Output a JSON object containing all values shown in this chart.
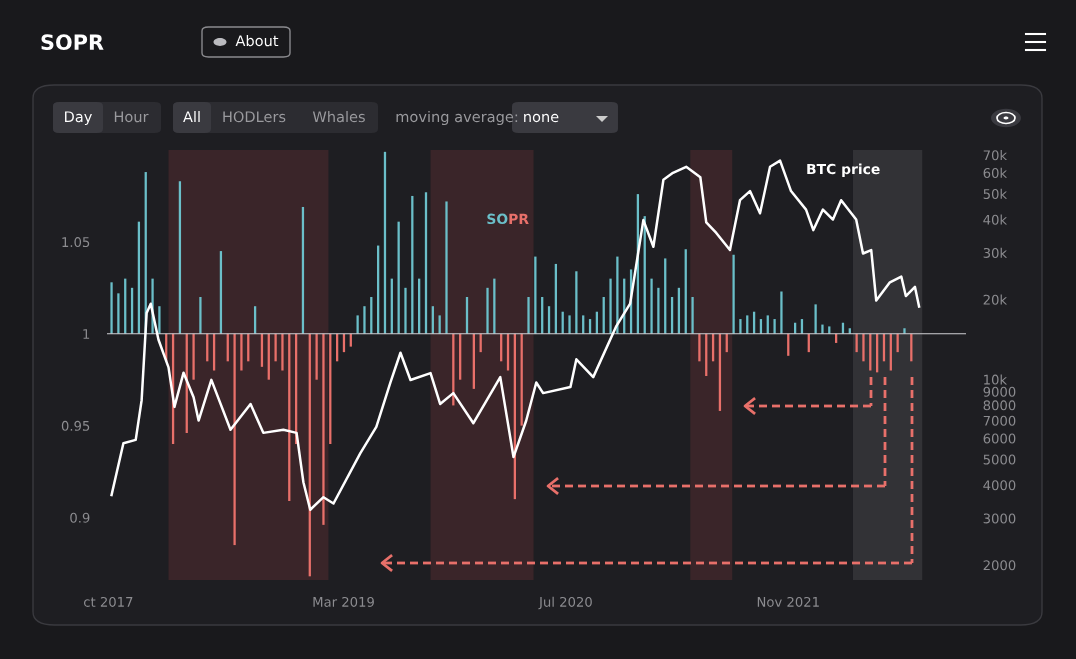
{
  "chart_data": {
    "type": "bar",
    "title": "SOPR",
    "annotations": [
      "About",
      "Day",
      "Hour",
      "All",
      "HODLers",
      "Whales",
      "moving average:",
      "none"
    ],
    "xlim": [
      "2017-09-28",
      "2022-11-26"
    ],
    "xticks": [
      {
        "value": "2017-10-01",
        "label": "ct 2017"
      },
      {
        "value": "2019-03-01",
        "label": "Mar 2019"
      },
      {
        "value": "2020-07-01",
        "label": "Jul 2020"
      },
      {
        "value": "2021-11-01",
        "label": "Nov 2021"
      }
    ],
    "ylim": [
      0.866,
      1.1
    ],
    "yticks": [
      0.9,
      0.95,
      1,
      1.05
    ],
    "y2lim": [
      1756,
      73100
    ],
    "y2ticks": [
      2000,
      3000,
      4000,
      5000,
      6000,
      7000,
      8000,
      9000,
      {
        "value": 10000,
        "label": "10k"
      },
      {
        "value": 20000,
        "label": "20k"
      },
      {
        "value": 30000,
        "label": "30k"
      },
      {
        "value": 40000,
        "label": "40k"
      },
      {
        "value": 50000,
        "label": "50k"
      },
      {
        "value": 60000,
        "label": "60k"
      },
      {
        "value": 70000,
        "label": "70k"
      }
    ],
    "log": "y2",
    "grid": false,
    "legend": false,
    "ref_lines": [
      {
        "axis": "y",
        "value": 1,
        "color": "#d0d0d4"
      }
    ],
    "bands": [
      {
        "axis": "x",
        "from": "2018-02-10",
        "to": "2019-01-27",
        "color": "#3a2529"
      },
      {
        "axis": "x",
        "from": "2019-09-08",
        "to": "2020-04-21",
        "color": "#3a2529"
      },
      {
        "axis": "x",
        "from": "2021-03-31",
        "to": "2021-07-01",
        "color": "#3a2529"
      },
      {
        "axis": "x",
        "from": "2022-03-23",
        "to": "2022-08-22",
        "color": "#323236"
      }
    ],
    "series": [
      {
        "name": "SOPR",
        "x": [
          "2017-10-08",
          "2017-10-23",
          "2017-11-07",
          "2017-11-22",
          "2017-12-07",
          "2017-12-22",
          "2018-01-06",
          "2018-01-21",
          "2018-02-05",
          "2018-02-20",
          "2018-03-07",
          "2018-03-22",
          "2018-04-06",
          "2018-04-21",
          "2018-05-06",
          "2018-05-21",
          "2018-06-05",
          "2018-06-20",
          "2018-07-05",
          "2018-07-20",
          "2018-08-04",
          "2018-08-19",
          "2018-09-03",
          "2018-09-18",
          "2018-10-03",
          "2018-10-18",
          "2018-11-02",
          "2018-11-17",
          "2018-12-02",
          "2018-12-17",
          "2019-01-01",
          "2019-01-16",
          "2019-01-31",
          "2019-02-15",
          "2019-03-02",
          "2019-03-17",
          "2019-04-01",
          "2019-04-16",
          "2019-05-01",
          "2019-05-16",
          "2019-05-31",
          "2019-06-15",
          "2019-06-30",
          "2019-07-15",
          "2019-07-30",
          "2019-08-14",
          "2019-08-29",
          "2019-09-13",
          "2019-09-28",
          "2019-10-13",
          "2019-10-28",
          "2019-11-12",
          "2019-11-27",
          "2019-12-12",
          "2019-12-27",
          "2020-01-11",
          "2020-01-26",
          "2020-02-10",
          "2020-02-25",
          "2020-03-11",
          "2020-03-26",
          "2020-04-10",
          "2020-04-25",
          "2020-05-10",
          "2020-05-25",
          "2020-06-09",
          "2020-06-24",
          "2020-07-09",
          "2020-07-24",
          "2020-08-08",
          "2020-08-23",
          "2020-09-07",
          "2020-09-22",
          "2020-10-07",
          "2020-10-22",
          "2020-11-06",
          "2020-11-21",
          "2020-12-06",
          "2020-12-21",
          "2021-01-05",
          "2021-01-20",
          "2021-02-04",
          "2021-02-19",
          "2021-03-06",
          "2021-03-21",
          "2021-04-05",
          "2021-04-20",
          "2021-05-05",
          "2021-05-20",
          "2021-06-04",
          "2021-06-19",
          "2021-07-04",
          "2021-07-19",
          "2021-08-03",
          "2021-08-18",
          "2021-09-02",
          "2021-09-17",
          "2021-10-02",
          "2021-10-17",
          "2021-11-01",
          "2021-11-16",
          "2021-12-01",
          "2021-12-16",
          "2021-12-31",
          "2022-01-15",
          "2022-01-30",
          "2022-02-14",
          "2022-03-01",
          "2022-03-16",
          "2022-03-31",
          "2022-04-15",
          "2022-04-30",
          "2022-05-15",
          "2022-05-30",
          "2022-06-14",
          "2022-06-29",
          "2022-07-14",
          "2022-07-29"
        ],
        "base": [
          1,
          1,
          1,
          1,
          1,
          1,
          1,
          1,
          1,
          1,
          1,
          1,
          1,
          1,
          1,
          1,
          1,
          1,
          1,
          1,
          1,
          1,
          1,
          1,
          1,
          1,
          1,
          1,
          1,
          1,
          1,
          1,
          1,
          1,
          1,
          1,
          1,
          1,
          1,
          1,
          1,
          1,
          1,
          1,
          1,
          1,
          1,
          1,
          1,
          1,
          1,
          1,
          1,
          1,
          1,
          1,
          1,
          1,
          1,
          1,
          1,
          1,
          1,
          1,
          1,
          1,
          1,
          1,
          1,
          1,
          1,
          1,
          1,
          1,
          1,
          1,
          1,
          1,
          1,
          1,
          1,
          1,
          1,
          1,
          1,
          1,
          1,
          1,
          1,
          1,
          1,
          1,
          1,
          1,
          1,
          1,
          1,
          1,
          1,
          1,
          1,
          1,
          1,
          1,
          1,
          1,
          1,
          1,
          1,
          1,
          1,
          1,
          1,
          1,
          1,
          1,
          1,
          1
        ],
        "values": [
          0.028,
          0.022,
          0.03,
          0.025,
          0.061,
          0.088,
          0.03,
          0.015,
          -0.015,
          -0.06,
          0.083,
          -0.054,
          -0.025,
          0.02,
          -0.015,
          -0.02,
          0.045,
          -0.015,
          -0.115,
          -0.02,
          -0.015,
          0.015,
          -0.018,
          -0.025,
          -0.015,
          -0.02,
          -0.091,
          -0.06,
          0.069,
          -0.132,
          -0.025,
          -0.104,
          -0.06,
          -0.015,
          -0.01,
          -0.007,
          0.01,
          0.015,
          0.02,
          0.048,
          0.099,
          0.03,
          0.061,
          0.025,
          0.075,
          0.03,
          0.077,
          0.015,
          0.01,
          0.072,
          -0.039,
          -0.025,
          0.02,
          -0.03,
          -0.01,
          0.025,
          0.03,
          -0.015,
          -0.02,
          -0.09,
          -0.05,
          0.02,
          0.042,
          0.02,
          0.015,
          0.038,
          0.012,
          0.01,
          0.034,
          0.01,
          0.008,
          0.012,
          0.02,
          0.03,
          0.042,
          0.03,
          0.035,
          0.076,
          0.064,
          0.03,
          0.025,
          0.041,
          0.02,
          0.025,
          0.046,
          0.02,
          -0.015,
          -0.023,
          -0.015,
          -0.042,
          -0.01,
          0.043,
          0.008,
          0.01,
          0.012,
          0.008,
          0.01,
          0.008,
          0.023,
          -0.012,
          0.006,
          0.008,
          -0.01,
          0.016,
          0.005,
          0.004,
          -0.005,
          0.006,
          0.003,
          -0.01,
          -0.015,
          -0.02,
          -0.021,
          -0.015,
          -0.02,
          -0.01,
          0.003,
          -0.015
        ],
        "colors": [
          "#6bbfc9",
          "#6bbfc9",
          "#6bbfc9",
          "#6bbfc9",
          "#6bbfc9",
          "#6bbfc9",
          "#6bbfc9",
          "#6bbfc9",
          "#e8706a",
          "#e8706a",
          "#6bbfc9",
          "#e8706a",
          "#e8706a",
          "#6bbfc9",
          "#e8706a",
          "#e8706a",
          "#6bbfc9",
          "#e8706a",
          "#e8706a",
          "#e8706a",
          "#e8706a",
          "#6bbfc9",
          "#e8706a",
          "#e8706a",
          "#e8706a",
          "#e8706a",
          "#e8706a",
          "#e8706a",
          "#6bbfc9",
          "#e8706a",
          "#e8706a",
          "#e8706a",
          "#e8706a",
          "#e8706a",
          "#e8706a",
          "#e8706a",
          "#6bbfc9",
          "#6bbfc9",
          "#6bbfc9",
          "#6bbfc9",
          "#6bbfc9",
          "#6bbfc9",
          "#6bbfc9",
          "#6bbfc9",
          "#6bbfc9",
          "#6bbfc9",
          "#6bbfc9",
          "#6bbfc9",
          "#6bbfc9",
          "#6bbfc9",
          "#e8706a",
          "#e8706a",
          "#6bbfc9",
          "#e8706a",
          "#e8706a",
          "#6bbfc9",
          "#6bbfc9",
          "#e8706a",
          "#e8706a",
          "#e8706a",
          "#e8706a",
          "#6bbfc9",
          "#6bbfc9",
          "#6bbfc9",
          "#6bbfc9",
          "#6bbfc9",
          "#6bbfc9",
          "#6bbfc9",
          "#6bbfc9",
          "#6bbfc9",
          "#6bbfc9",
          "#6bbfc9",
          "#6bbfc9",
          "#6bbfc9",
          "#6bbfc9",
          "#6bbfc9",
          "#6bbfc9",
          "#6bbfc9",
          "#6bbfc9",
          "#6bbfc9",
          "#6bbfc9",
          "#6bbfc9",
          "#6bbfc9",
          "#6bbfc9",
          "#6bbfc9",
          "#6bbfc9",
          "#e8706a",
          "#e8706a",
          "#e8706a",
          "#e8706a",
          "#e8706a",
          "#6bbfc9",
          "#6bbfc9",
          "#6bbfc9",
          "#6bbfc9",
          "#6bbfc9",
          "#6bbfc9",
          "#6bbfc9",
          "#6bbfc9",
          "#e8706a",
          "#6bbfc9",
          "#6bbfc9",
          "#e8706a",
          "#6bbfc9",
          "#6bbfc9",
          "#6bbfc9",
          "#e8706a",
          "#6bbfc9",
          "#6bbfc9",
          "#e8706a",
          "#e8706a",
          "#e8706a",
          "#e8706a",
          "#e8706a",
          "#e8706a",
          "#e8706a",
          "#6bbfc9",
          "#e8706a"
        ]
      },
      {
        "type": "line",
        "name": "BTC price",
        "axis": "y2",
        "color": "#ffffff",
        "x": [
          "2017-10-08",
          "2017-11-03",
          "2017-11-30",
          "2017-12-13",
          "2017-12-24",
          "2018-01-02",
          "2018-01-19",
          "2018-02-10",
          "2018-02-23",
          "2018-03-15",
          "2018-04-06",
          "2018-04-17",
          "2018-05-15",
          "2018-06-26",
          "2018-08-09",
          "2018-09-06",
          "2018-10-20",
          "2018-11-18",
          "2018-12-03",
          "2018-12-18",
          "2019-01-16",
          "2019-02-07",
          "2019-04-07",
          "2019-05-12",
          "2019-06-12",
          "2019-07-04",
          "2019-07-26",
          "2019-09-08",
          "2019-09-29",
          "2019-10-28",
          "2019-12-11",
          "2020-02-08",
          "2020-03-08",
          "2020-04-05",
          "2020-04-27",
          "2020-05-12",
          "2020-07-11",
          "2020-07-24",
          "2020-08-30",
          "2020-10-19",
          "2020-11-19",
          "2020-12-18",
          "2021-01-09",
          "2021-01-31",
          "2021-02-21",
          "2021-03-22",
          "2021-04-22",
          "2021-05-05",
          "2021-05-27",
          "2021-06-26",
          "2021-07-18",
          "2021-08-09",
          "2021-08-31",
          "2021-09-22",
          "2021-10-14",
          "2021-11-07",
          "2021-12-10",
          "2021-12-26",
          "2022-01-16",
          "2022-02-07",
          "2022-02-25",
          "2022-03-30",
          "2022-04-14",
          "2022-05-02",
          "2022-05-13",
          "2022-06-12",
          "2022-07-07",
          "2022-07-17",
          "2022-08-06",
          "2022-08-15"
        ],
        "values": [
          3670,
          5750,
          5920,
          8350,
          17800,
          19270,
          14100,
          11100,
          7880,
          10600,
          8570,
          7000,
          9960,
          6460,
          8080,
          6290,
          6460,
          6290,
          4100,
          3230,
          3600,
          3410,
          5280,
          6620,
          9740,
          12600,
          9950,
          10560,
          8080,
          8880,
          6840,
          10200,
          5100,
          7000,
          9730,
          8880,
          9360,
          11900,
          10200,
          15800,
          19300,
          39800,
          31600,
          56500,
          60000,
          63200,
          57700,
          39000,
          35600,
          30700,
          47300,
          51200,
          42200,
          63200,
          66700,
          51200,
          43600,
          36500,
          43600,
          40000,
          47300,
          40000,
          29800,
          30700,
          19800,
          23200,
          24400,
          20600,
          22300,
          18800
        ]
      }
    ]
  }
}
